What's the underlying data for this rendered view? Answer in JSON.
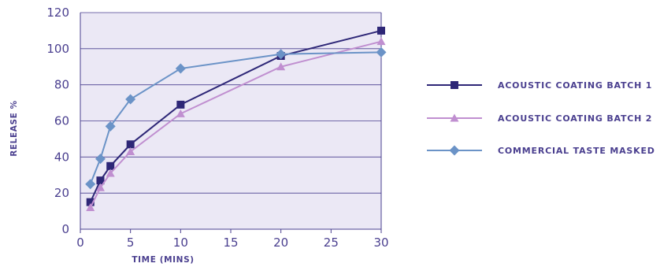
{
  "chart_data": {
    "type": "line",
    "title": "",
    "xlabel": "TIME (MINS)",
    "ylabel": "RELEASE %",
    "xlim": [
      0,
      30
    ],
    "ylim": [
      0,
      120
    ],
    "xticks": [
      0,
      5,
      10,
      15,
      20,
      25,
      30
    ],
    "yticks": [
      0,
      20,
      40,
      60,
      80,
      100,
      120
    ],
    "grid": "horizontal",
    "plot_background": "#ebe8f5",
    "legend_position": "right",
    "series": [
      {
        "name": "ACOUSTIC COATING BATCH 1",
        "color": "#2e2777",
        "marker": "square",
        "x": [
          1,
          2,
          3,
          5,
          10,
          20,
          30
        ],
        "y": [
          15,
          27,
          35,
          47,
          69,
          96,
          110
        ]
      },
      {
        "name": "ACOUSTIC COATING BATCH 2",
        "color": "#c08fd0",
        "marker": "triangle",
        "x": [
          1,
          2,
          3,
          5,
          10,
          20,
          30
        ],
        "y": [
          12,
          23,
          31,
          43,
          64,
          90,
          104
        ]
      },
      {
        "name": "COMMERCIAL TASTE MASKED",
        "color": "#6b93c7",
        "marker": "diamond",
        "x": [
          1,
          2,
          3,
          5,
          10,
          20,
          30
        ],
        "y": [
          25,
          39,
          57,
          72,
          89,
          97,
          98
        ]
      }
    ]
  }
}
